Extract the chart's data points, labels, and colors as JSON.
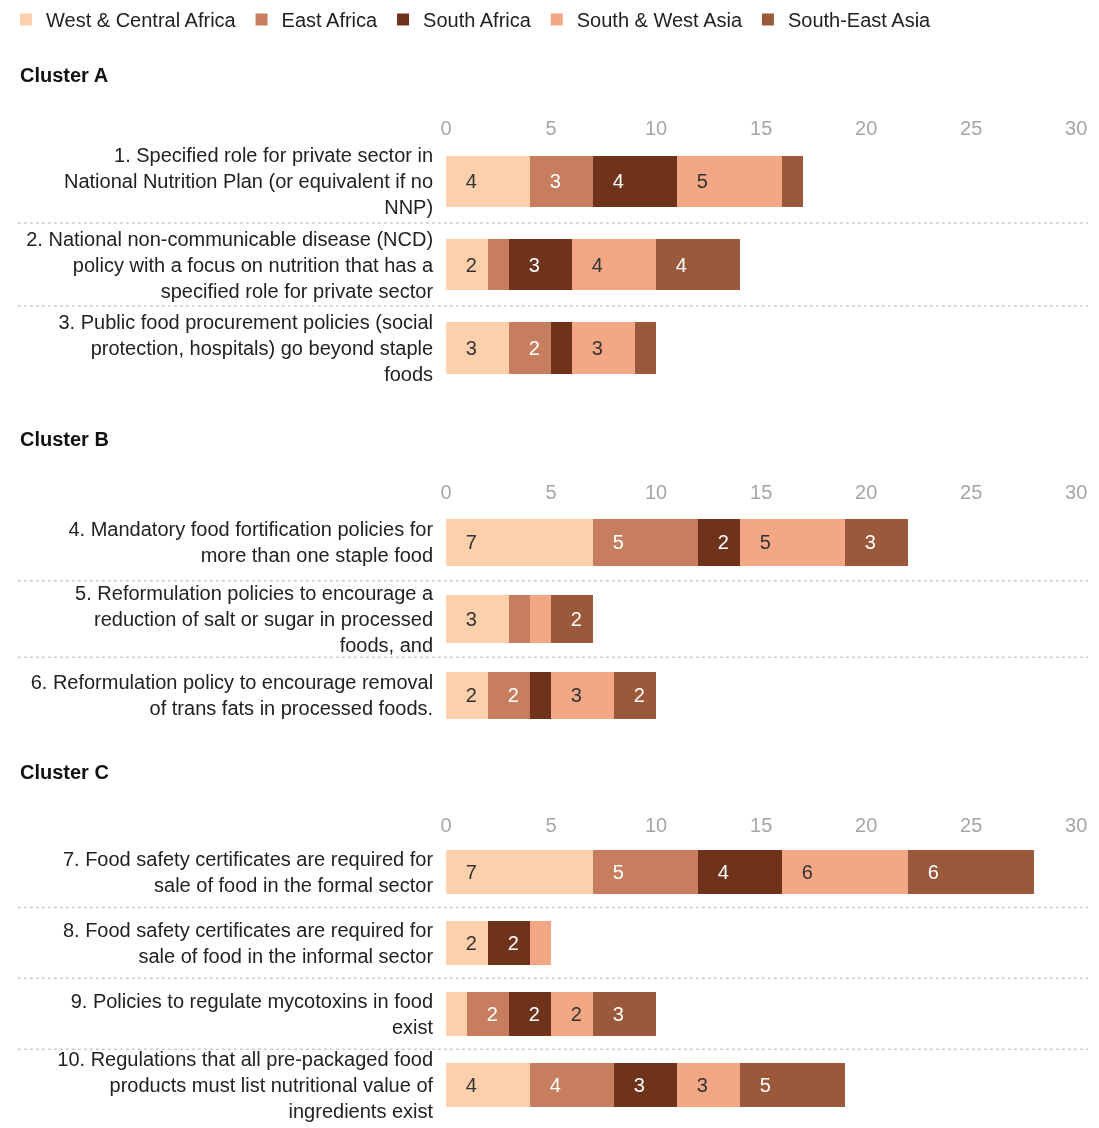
{
  "chart_data": [
    {
      "type": "bar",
      "orientation": "horizontal",
      "stacked": true,
      "title": "Cluster A",
      "legend": "top left",
      "categories": [
        "1. Specified role for private sector in National Nutrition Plan (or equivalent if no NNP)",
        "2. National non-communicable disease (NCD) policy with a focus on nutrition that has a specified role for private sector",
        "3. Public food procurement policies (social protection, hospitals) go beyond staple foods"
      ],
      "xlim": [
        0,
        30
      ],
      "xticks": [
        0,
        5,
        10,
        15,
        20,
        25,
        30
      ],
      "series": [
        {
          "name": "West & Central Africa",
          "color": "#fdd0ab",
          "values": [
            4,
            2,
            3
          ],
          "value_labels": [
            "4",
            "2",
            "3"
          ]
        },
        {
          "name": "East Africa",
          "color": "#c77e5f",
          "values": [
            3,
            1,
            2
          ],
          "value_labels": [
            "3",
            null,
            "2"
          ]
        },
        {
          "name": "South Africa",
          "color": "#6e331a",
          "values": [
            4,
            3,
            1
          ],
          "value_labels": [
            "4",
            "3",
            null
          ]
        },
        {
          "name": "South & West Asia",
          "color": "#f3a784",
          "values": [
            5,
            4,
            3
          ],
          "value_labels": [
            "5",
            "4",
            "3"
          ]
        },
        {
          "name": "South-East Asia",
          "color": "#9b593b",
          "values": [
            1,
            4,
            1
          ],
          "value_labels": [
            null,
            "4",
            null
          ]
        }
      ]
    },
    {
      "type": "bar",
      "orientation": "horizontal",
      "stacked": true,
      "title": "Cluster B",
      "categories": [
        "4. Mandatory food fortification policies for more than one staple food",
        "5. Reformulation policies to encourage a reduction of salt or sugar in processed foods, and",
        "6. Reformulation policy to encourage removal of trans fats in processed foods."
      ],
      "xlim": [
        0,
        30
      ],
      "xticks": [
        0,
        5,
        10,
        15,
        20,
        25,
        30
      ],
      "series": [
        {
          "color": "#fdd0ab",
          "values": [
            7,
            3,
            2
          ],
          "value_labels": [
            "7",
            "3",
            "2"
          ]
        },
        {
          "color": "#c77e5f",
          "values": [
            5,
            1,
            2
          ],
          "value_labels": [
            "5",
            null,
            "2"
          ]
        },
        {
          "color": "#6e331a",
          "values": [
            2,
            0,
            1
          ],
          "value_labels": [
            "2",
            null,
            null
          ]
        },
        {
          "color": "#f3a784",
          "values": [
            5,
            1,
            3
          ],
          "value_labels": [
            "5",
            null,
            "3"
          ]
        },
        {
          "color": "#9b593b",
          "values": [
            3,
            2,
            2
          ],
          "value_labels": [
            "3",
            "2",
            "2"
          ]
        }
      ]
    },
    {
      "type": "bar",
      "orientation": "horizontal",
      "stacked": true,
      "title": "Cluster C",
      "categories": [
        "7. Food safety certificates are required for sale of food in the formal sector",
        "8. Food safety certificates are required for sale of food in the informal sector",
        "9. Policies to regulate mycotoxins in food exist",
        "10. Regulations that all pre-packaged food products must list nutritional value of ingredients exist"
      ],
      "xlim": [
        0,
        30
      ],
      "xticks": [
        0,
        5,
        10,
        15,
        20,
        25,
        30
      ],
      "series": [
        {
          "color": "#fdd0ab",
          "values": [
            7,
            2,
            1,
            4
          ],
          "value_labels": [
            "7",
            "2",
            null,
            "4"
          ]
        },
        {
          "color": "#c77e5f",
          "values": [
            5,
            0,
            2,
            4
          ],
          "value_labels": [
            "5",
            null,
            "2",
            "4"
          ]
        },
        {
          "color": "#6e331a",
          "values": [
            4,
            2,
            2,
            3
          ],
          "value_labels": [
            "4",
            "2",
            "2",
            "3"
          ]
        },
        {
          "color": "#f3a784",
          "values": [
            6,
            1,
            2,
            3
          ],
          "value_labels": [
            "6",
            null,
            "2",
            "3"
          ]
        },
        {
          "color": "#9b593b",
          "values": [
            6,
            0,
            3,
            5
          ],
          "value_labels": [
            "6",
            null,
            "3",
            "5"
          ]
        }
      ]
    }
  ]
}
